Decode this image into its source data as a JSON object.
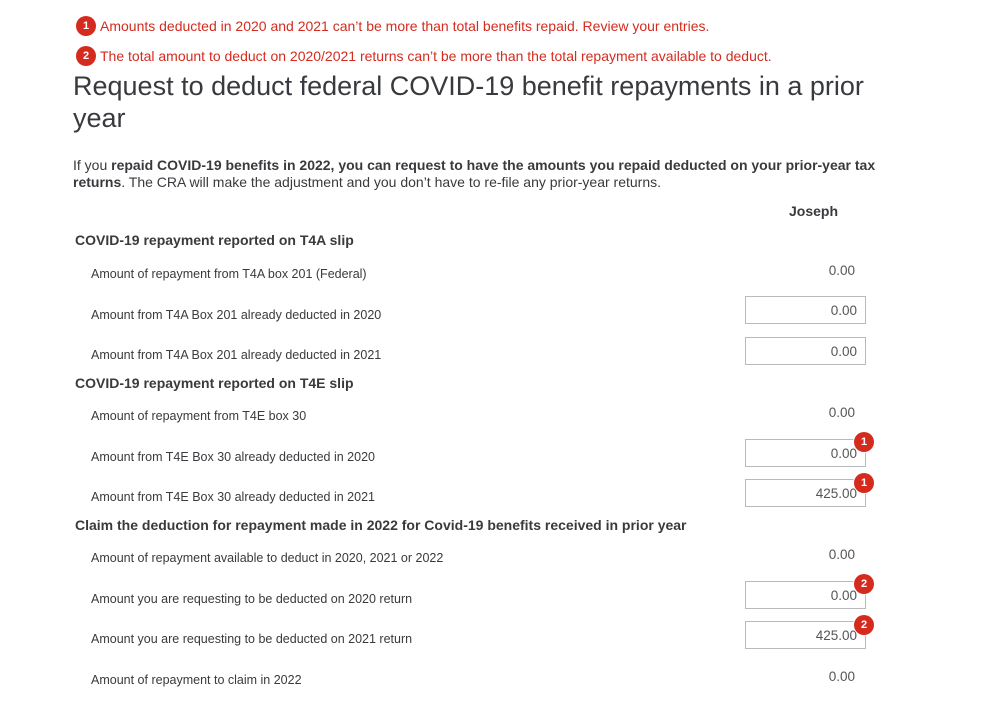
{
  "errors": [
    {
      "num": "1",
      "text": "Amounts deducted in 2020 and 2021 can’t be more than total benefits repaid. Review your entries."
    },
    {
      "num": "2",
      "text": "The total amount to deduct on 2020/2021 returns can’t be more than the total repayment available to deduct."
    }
  ],
  "page": {
    "title": "Request to deduct federal COVID-19 benefit repayments in a prior year",
    "intro_part1": "If you ",
    "intro_bold": "repaid COVID-19 benefits in 2022, you can request to have the amounts you repaid deducted on your prior-year tax returns",
    "intro_part2": ". The CRA will make the adjustment and you don’t have to re-file any prior-year returns.",
    "column_header": "Joseph"
  },
  "sections": {
    "t4a": {
      "heading": "COVID-19 repayment reported on T4A slip",
      "rows": [
        {
          "label": "Amount of repayment from T4A box 201 (Federal)",
          "value": "0.00"
        },
        {
          "label": "Amount from T4A Box 201 already deducted in 2020",
          "value": "0.00"
        },
        {
          "label": "Amount from T4A Box 201 already deducted in 2021",
          "value": "0.00"
        }
      ]
    },
    "t4e": {
      "heading": "COVID-19 repayment reported on T4E slip",
      "rows": [
        {
          "label": "Amount of repayment from T4E box 30",
          "value": "0.00"
        },
        {
          "label": "Amount from T4E Box 30 already deducted in 2020",
          "value": "0.00",
          "error": "1"
        },
        {
          "label": "Amount from T4E Box 30 already deducted in 2021",
          "value": "425.00",
          "error": "1"
        }
      ]
    },
    "claim": {
      "heading": "Claim the deduction for repayment made in 2022 for Covid-19 benefits received in prior year",
      "rows": [
        {
          "label": "Amount of repayment available to deduct in 2020, 2021 or 2022",
          "value": "0.00"
        },
        {
          "label": "Amount you are requesting to be deducted on 2020 return",
          "value": "0.00",
          "error": "2"
        },
        {
          "label": "Amount you are requesting to be deducted on 2021 return",
          "value": "425.00",
          "error": "2"
        },
        {
          "label": "Amount of repayment to claim in 2022",
          "value": "0.00"
        }
      ]
    }
  },
  "colors": {
    "error": "#d52b1e",
    "text": "#393a3d"
  }
}
